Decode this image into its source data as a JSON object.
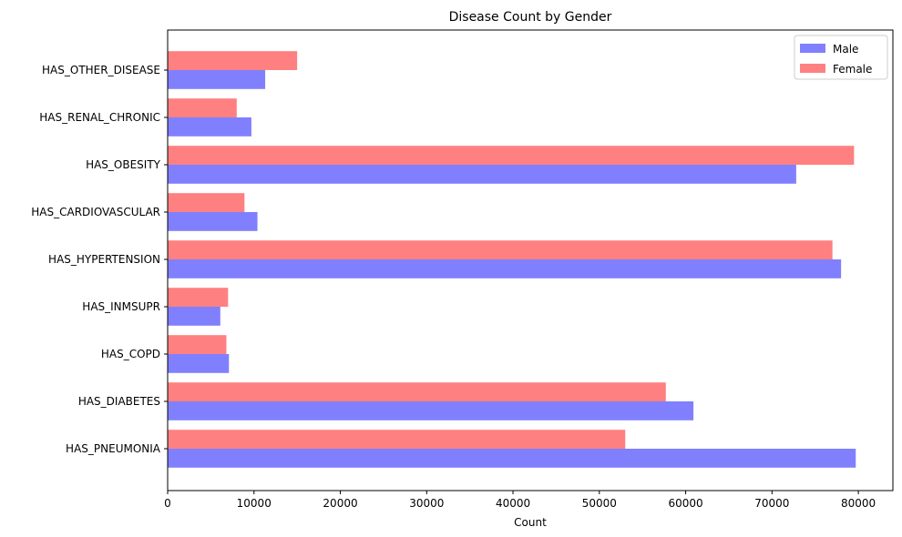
{
  "chart_data": {
    "type": "bar",
    "orientation": "horizontal",
    "title": "Disease Count by Gender",
    "xlabel": "Count",
    "ylabel": "",
    "xlim": [
      0,
      84000
    ],
    "xticks": [
      0,
      10000,
      20000,
      30000,
      40000,
      50000,
      60000,
      70000,
      80000
    ],
    "grid": false,
    "legend_position": "top-right",
    "categories": [
      "HAS_PNEUMONIA",
      "HAS_DIABETES",
      "HAS_COPD",
      "HAS_INMSUPR",
      "HAS_HYPERTENSION",
      "HAS_CARDIOVASCULAR",
      "HAS_OBESITY",
      "HAS_RENAL_CHRONIC",
      "HAS_OTHER_DISEASE"
    ],
    "series": [
      {
        "name": "Male",
        "color": "#8080ff",
        "values": [
          79700,
          60900,
          7100,
          6100,
          78000,
          10400,
          72800,
          9700,
          11300
        ]
      },
      {
        "name": "Female",
        "color": "#ff8080",
        "values": [
          53000,
          57700,
          6800,
          7000,
          77000,
          8900,
          79500,
          8000,
          15000
        ]
      }
    ]
  }
}
